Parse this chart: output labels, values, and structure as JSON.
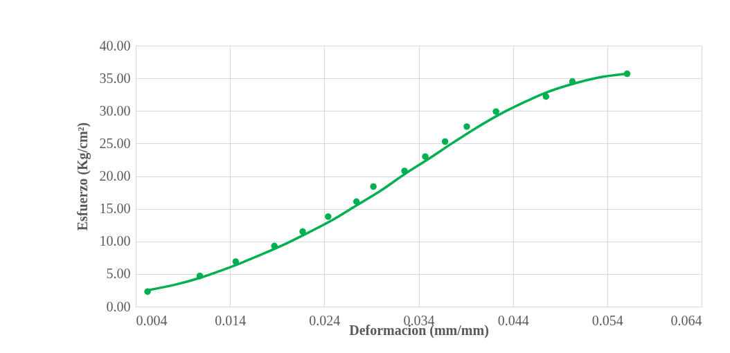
{
  "chart_data": {
    "type": "scatter",
    "xlabel": "Deformacion (mm/mm)",
    "ylabel": "Esfuerzo (Kg/cm²)",
    "xlim": [
      0.004,
      0.064
    ],
    "xticks": [
      0.004,
      0.014,
      0.024,
      0.034,
      0.044,
      0.054,
      0.064
    ],
    "ylim": [
      0,
      40
    ],
    "yticks": [
      {
        "value": 0,
        "label": "0.00"
      },
      {
        "value": 5,
        "label": "5.00"
      },
      {
        "value": 10,
        "label": "10.00"
      },
      {
        "value": 15,
        "label": "15.00"
      },
      {
        "value": 20,
        "label": "20.00"
      },
      {
        "value": 25,
        "label": "25.00"
      },
      {
        "value": 30,
        "label": "30.00"
      },
      {
        "value": 35,
        "label": "35.00"
      },
      {
        "value": 40,
        "label": "40.00"
      }
    ],
    "grid": true,
    "series": [
      {
        "marker": "circle",
        "color": "#00b050",
        "x": [
          0.00525,
          0.0108,
          0.0146,
          0.0187,
          0.0217,
          0.0244,
          0.0274,
          0.0292,
          0.0325,
          0.0347,
          0.0368,
          0.0391,
          0.0422,
          0.0475,
          0.0503,
          0.0561
        ],
        "values": [
          2.3,
          4.7,
          6.9,
          9.3,
          11.5,
          13.8,
          16.1,
          18.4,
          20.8,
          23.0,
          25.3,
          27.6,
          29.9,
          32.2,
          34.5,
          35.7
        ]
      },
      {
        "type": "line",
        "color": "#00b050",
        "line_style": "solid",
        "x": [
          0.00525,
          0.008,
          0.0108,
          0.013,
          0.015,
          0.0175,
          0.02,
          0.0225,
          0.025,
          0.0275,
          0.03,
          0.0325,
          0.035,
          0.0375,
          0.04,
          0.0425,
          0.045,
          0.0475,
          0.05,
          0.053,
          0.0561
        ],
        "values": [
          2.5,
          3.3,
          4.4,
          5.5,
          6.6,
          8.1,
          9.7,
          11.5,
          13.4,
          15.6,
          17.8,
          20.3,
          22.6,
          25.0,
          27.3,
          29.4,
          31.2,
          32.8,
          34.0,
          35.1,
          35.7
        ]
      }
    ]
  }
}
